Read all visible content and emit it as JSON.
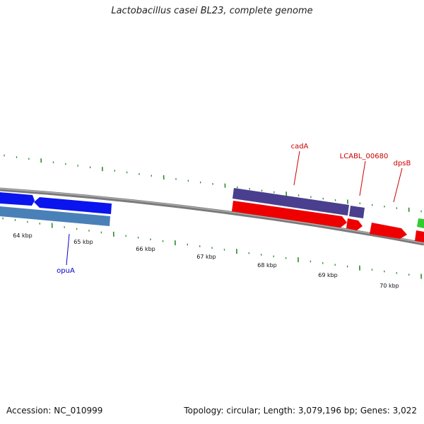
{
  "title": "Lactobacillus casei BL23, complete genome",
  "footer": {
    "accession": "Accession: NC_010999",
    "summary": "Topology: circular; Length: 3,079,196 bp; Genes: 3,022"
  },
  "scale": {
    "unit": "kbp",
    "labels": [
      "64 kbp",
      "65 kbp",
      "66 kbp",
      "67 kbp",
      "68 kbp",
      "69 kbp",
      "70 kbp"
    ]
  },
  "gene_labels": [
    {
      "name": "opuA",
      "color": "#0000cc"
    },
    {
      "name": "cadA",
      "color": "#cc0000"
    },
    {
      "name": "LCABL_00680",
      "color": "#cc0000"
    },
    {
      "name": "dpsB",
      "color": "#cc0000"
    }
  ],
  "colors": {
    "backbone": "#808080",
    "ticks": "#2a8a2a",
    "blue_feature": "#0a14ee",
    "steelblue_feature": "#4a80b8",
    "purple_feature": "#4a3f8e",
    "red_feature": "#ee0000",
    "green_feature": "#33cc33"
  }
}
